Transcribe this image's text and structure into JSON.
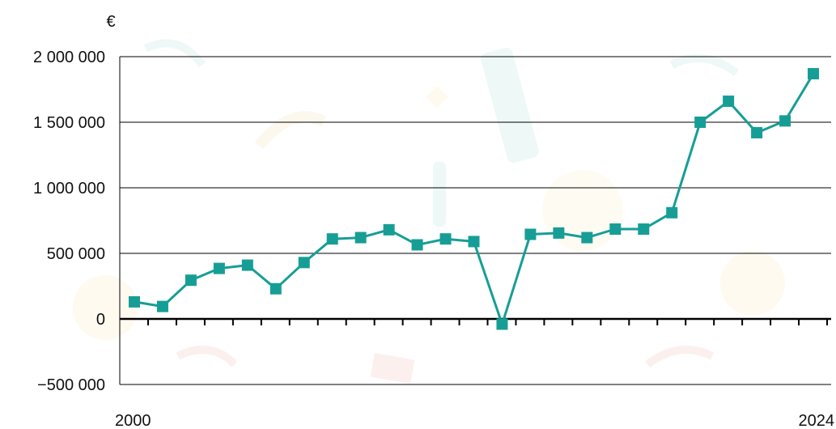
{
  "chart_data": {
    "type": "line",
    "unit_label": "€",
    "x": [
      2000,
      2001,
      2002,
      2003,
      2004,
      2005,
      2006,
      2007,
      2008,
      2009,
      2010,
      2011,
      2012,
      2013,
      2014,
      2015,
      2016,
      2017,
      2018,
      2019,
      2020,
      2021,
      2022,
      2023,
      2024
    ],
    "x_tick_labels": [
      "2000",
      "2024"
    ],
    "series": [
      {
        "values": [
          130000,
          95000,
          295000,
          385000,
          410000,
          230000,
          430000,
          610000,
          620000,
          680000,
          565000,
          610000,
          590000,
          -40000,
          645000,
          655000,
          620000,
          685000,
          685000,
          810000,
          1500000,
          1660000,
          1420000,
          1510000,
          1870000
        ]
      }
    ],
    "ylim": [
      -500000,
      2000000
    ],
    "y_ticks": [
      -500000,
      0,
      500000,
      1000000,
      1500000,
      2000000
    ],
    "y_tick_labels": [
      "−500 000",
      "0",
      "500 000",
      "1 000 000",
      "1 500 000",
      "2 000 000"
    ],
    "grid": true,
    "line_color": "#169e96",
    "marker_color": "#169e96"
  }
}
